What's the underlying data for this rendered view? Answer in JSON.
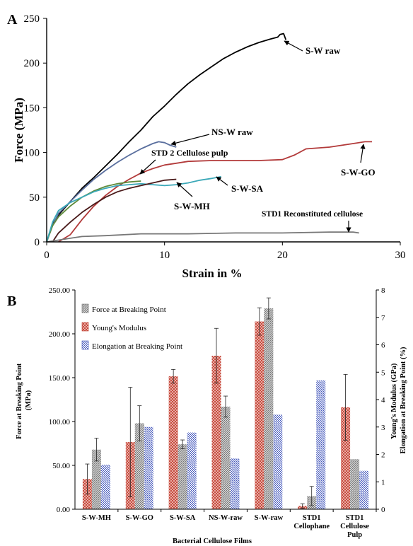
{
  "chart_data": [
    {
      "panel_label": "A",
      "type": "line",
      "xlabel": "Strain in %",
      "ylabel": "Force (MPa)",
      "xlim": [
        0,
        30
      ],
      "ylim": [
        0,
        250
      ],
      "xticks": [
        0,
        10,
        20,
        30
      ],
      "yticks": [
        0,
        50,
        100,
        150,
        200,
        250
      ],
      "grid": false,
      "series": [
        {
          "name": "S-W raw",
          "color": "#000000",
          "points": [
            [
              0,
              0
            ],
            [
              0.5,
              20
            ],
            [
              1,
              30
            ],
            [
              2,
              45
            ],
            [
              3,
              60
            ],
            [
              4,
              72
            ],
            [
              5,
              85
            ],
            [
              6,
              98
            ],
            [
              7,
              112
            ],
            [
              8,
              125
            ],
            [
              9,
              140
            ],
            [
              10,
              152
            ],
            [
              11,
              165
            ],
            [
              12,
              177
            ],
            [
              13,
              187
            ],
            [
              14,
              196
            ],
            [
              15,
              205
            ],
            [
              16,
              212
            ],
            [
              17,
              218
            ],
            [
              18,
              223
            ],
            [
              19,
              227
            ],
            [
              19.6,
              229
            ],
            [
              19.8,
              232
            ],
            [
              20.1,
              233
            ],
            [
              20.3,
              226
            ]
          ]
        },
        {
          "name": "NS-W raw",
          "color": "#5a6f9e",
          "points": [
            [
              0,
              0
            ],
            [
              0.5,
              18
            ],
            [
              1,
              32
            ],
            [
              2,
              45
            ],
            [
              3,
              58
            ],
            [
              4,
              70
            ],
            [
              5,
              80
            ],
            [
              6,
              89
            ],
            [
              7,
              97
            ],
            [
              8,
              104
            ],
            [
              9,
              110
            ],
            [
              9.5,
              112
            ],
            [
              10,
              111
            ],
            [
              10.5,
              108
            ],
            [
              11,
              106
            ]
          ]
        },
        {
          "name": "S-W-GO",
          "color": "#b23a3a",
          "points": [
            [
              1,
              0
            ],
            [
              2,
              8
            ],
            [
              3,
              25
            ],
            [
              4,
              40
            ],
            [
              5,
              52
            ],
            [
              6,
              62
            ],
            [
              7,
              70
            ],
            [
              8,
              77
            ],
            [
              9,
              82
            ],
            [
              10,
              86
            ],
            [
              11,
              88
            ],
            [
              12,
              90
            ],
            [
              14,
              91
            ],
            [
              16,
              91
            ],
            [
              18,
              91
            ],
            [
              20,
              92
            ],
            [
              21,
              97
            ],
            [
              22,
              104
            ],
            [
              24,
              106
            ],
            [
              26,
              110
            ],
            [
              27,
              112
            ],
            [
              27.6,
              112
            ]
          ]
        },
        {
          "name": "STD 2 Cellulose pulp",
          "color": "#5e8a3a",
          "points": [
            [
              0,
              0
            ],
            [
              0.5,
              18
            ],
            [
              1,
              28
            ],
            [
              2,
              40
            ],
            [
              3,
              50
            ],
            [
              4,
              57
            ],
            [
              5,
              62
            ],
            [
              6,
              65
            ],
            [
              7,
              67
            ],
            [
              8,
              68
            ]
          ]
        },
        {
          "name": "S-W-SA",
          "color": "#3aa8b8",
          "points": [
            [
              0,
              0
            ],
            [
              0.5,
              22
            ],
            [
              1,
              35
            ],
            [
              2,
              44
            ],
            [
              3,
              50
            ],
            [
              4,
              56
            ],
            [
              5,
              60
            ],
            [
              6,
              63
            ],
            [
              7,
              64
            ],
            [
              8,
              65
            ],
            [
              9,
              64
            ],
            [
              10,
              63
            ],
            [
              11,
              64
            ],
            [
              12,
              66
            ],
            [
              13,
              69
            ],
            [
              14,
              71
            ],
            [
              14.8,
              73
            ]
          ]
        },
        {
          "name": "S-W-MH",
          "color": "#4a1a1a",
          "points": [
            [
              0.5,
              0
            ],
            [
              1,
              10
            ],
            [
              2,
              22
            ],
            [
              3,
              33
            ],
            [
              4,
              42
            ],
            [
              5,
              50
            ],
            [
              6,
              56
            ],
            [
              7,
              60
            ],
            [
              8,
              63
            ],
            [
              9,
              66
            ],
            [
              10,
              69
            ],
            [
              11,
              70
            ]
          ]
        },
        {
          "name": "STD1 Reconstituted cellulose",
          "color": "#777777",
          "points": [
            [
              0,
              0
            ],
            [
              1,
              2
            ],
            [
              2,
              4
            ],
            [
              3,
              6
            ],
            [
              5,
              7
            ],
            [
              8,
              9
            ],
            [
              12,
              9
            ],
            [
              16,
              10
            ],
            [
              20,
              10
            ],
            [
              24,
              11
            ],
            [
              26,
              11
            ],
            [
              26.5,
              10
            ]
          ]
        }
      ]
    },
    {
      "panel_label": "B",
      "type": "bar",
      "xlabel": "Bacterial Cellulose Films",
      "ylabel_left": "Force at Breaking Point (MPa)",
      "ylabel_right": "Young's Modulus (GPa) Elongation at Breaking Point (%)",
      "ylim_left": [
        0,
        250
      ],
      "ylim_right": [
        0,
        8
      ],
      "yticks_left": [
        "0.00",
        "50.00",
        "100.00",
        "150.00",
        "200.00",
        "250.00"
      ],
      "yticks_right": [
        0,
        1,
        2,
        3,
        4,
        5,
        6,
        7,
        8
      ],
      "legend_position": "top-left",
      "categories": [
        "S-W-MH",
        "S-W-GO",
        "S-W-SA",
        "NS-W-raw",
        "S-W-raw",
        "STD1 Cellophane",
        "STD1 Cellulose Pulp"
      ],
      "category_lines": [
        [
          "S-W-MH"
        ],
        [
          "S-W-GO"
        ],
        [
          "S-W-SA"
        ],
        [
          "NS-W-raw"
        ],
        [
          "S-W-raw"
        ],
        [
          "STD1",
          "Cellophane"
        ],
        [
          "STD1",
          "Cellulose",
          "Pulp"
        ]
      ],
      "series": [
        {
          "name": "Young's Modulus",
          "axis": "right",
          "color": "#c0392b",
          "values": [
            1.1,
            2.45,
            4.85,
            5.6,
            6.85,
            0.12,
            3.72
          ],
          "errors": [
            0.55,
            2.0,
            0.25,
            1.0,
            0.5,
            0.08,
            1.2
          ]
        },
        {
          "name": "Force at Breaking Point",
          "axis": "left",
          "color": "#888888",
          "values": [
            68,
            98,
            74,
            117,
            229,
            15,
            57
          ],
          "errors": [
            13,
            20,
            5,
            12,
            12,
            11,
            0
          ]
        },
        {
          "name": "Elongation at Breaking Point",
          "axis": "right",
          "color": "#3b4fb8",
          "values": [
            1.62,
            3.0,
            2.8,
            1.85,
            3.45,
            4.7,
            1.4
          ],
          "errors": [
            0,
            0,
            0,
            0,
            0,
            0,
            0
          ]
        }
      ],
      "legend_order": [
        "Force at Breaking Point",
        "Young's Modulus",
        "Elongation at Breaking Point"
      ]
    }
  ],
  "annotations_a": [
    {
      "text": "S-W raw"
    },
    {
      "text": "NS-W raw"
    },
    {
      "text": "STD 2 Cellulose pulp"
    },
    {
      "text": "S-W-GO"
    },
    {
      "text": "S-W-SA"
    },
    {
      "text": "S-W-MH"
    },
    {
      "text": "STD1 Reconstituted cellulose"
    }
  ]
}
